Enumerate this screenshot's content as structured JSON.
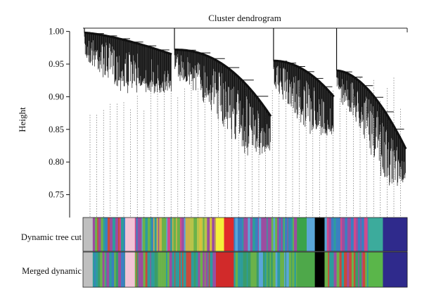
{
  "chart_data": {
    "type": "dendrogram",
    "title": "Cluster dendrogram",
    "xlabel": "",
    "ylabel": "Height",
    "ylim": [
      0.715,
      1.005
    ],
    "y_ticks": [
      "1.00",
      "0.95",
      "0.90",
      "0.85",
      "0.80",
      "0.75"
    ],
    "clusters": [
      {
        "n_leaves": 200,
        "merge_height": 0.998,
        "floor": 0.905,
        "steep": 1.4
      },
      {
        "n_leaves": 220,
        "merge_height": 0.972,
        "floor": 0.81,
        "steep": 2.2
      },
      {
        "n_leaves": 140,
        "merge_height": 0.955,
        "floor": 0.84,
        "steep": 2.0
      },
      {
        "n_leaves": 160,
        "merge_height": 0.94,
        "floor": 0.76,
        "steep": 1.8
      }
    ],
    "root_height": 1.0,
    "color_bands": [
      {
        "name": "Dynamic tree cut",
        "segments": [
          {
            "from": 0.0,
            "to": 0.03,
            "color": "#bfbfbf"
          },
          {
            "from": 0.03,
            "to": 0.13,
            "color": "mixed",
            "palette": [
              "#3a7fc1",
              "#9b4da0",
              "#6bb24a",
              "#d14a8b",
              "#2d9c9c",
              "#c94a3a"
            ]
          },
          {
            "from": 0.13,
            "to": 0.16,
            "color": "#f2c4d6"
          },
          {
            "from": 0.16,
            "to": 0.33,
            "color": "mixed",
            "palette": [
              "#3a7fc1",
              "#9b4da0",
              "#6bb24a",
              "#5aa6d8",
              "#c9b24a",
              "#2d9c9c",
              "#d14a8b"
            ]
          },
          {
            "from": 0.33,
            "to": 0.41,
            "color": "mixed",
            "palette": [
              "#6bb24a",
              "#9b4da0",
              "#b8c34a",
              "#d8c23a"
            ]
          },
          {
            "from": 0.41,
            "to": 0.435,
            "color": "#f5f03a"
          },
          {
            "from": 0.435,
            "to": 0.465,
            "color": "#e12a2a"
          },
          {
            "from": 0.465,
            "to": 0.66,
            "color": "mixed",
            "palette": [
              "#3a7fc1",
              "#5aa6d8",
              "#2d9c9c",
              "#6bb24a",
              "#9b4da0"
            ]
          },
          {
            "from": 0.66,
            "to": 0.69,
            "color": "#3aa34a"
          },
          {
            "from": 0.69,
            "to": 0.715,
            "color": "#5aa6d8"
          },
          {
            "from": 0.715,
            "to": 0.745,
            "color": "#000000"
          },
          {
            "from": 0.745,
            "to": 0.88,
            "color": "mixed",
            "palette": [
              "#3a7fc1",
              "#5aa6d8",
              "#2d9c9c",
              "#d14a8b",
              "#9b4da0"
            ]
          },
          {
            "from": 0.88,
            "to": 0.925,
            "color": "#3cab9c"
          },
          {
            "from": 0.925,
            "to": 1.0,
            "color": "#2f2a8c"
          }
        ]
      },
      {
        "name": "Merged dynamic",
        "segments": [
          {
            "from": 0.0,
            "to": 0.03,
            "color": "#bfbfbf"
          },
          {
            "from": 0.03,
            "to": 0.13,
            "color": "mixed",
            "palette": [
              "#3a9c6a",
              "#6bb24a",
              "#2d9c9c",
              "#9b4da0",
              "#3a7fc1"
            ]
          },
          {
            "from": 0.13,
            "to": 0.16,
            "color": "#f2c4d6"
          },
          {
            "from": 0.16,
            "to": 0.41,
            "color": "mixed",
            "palette": [
              "#3a9c6a",
              "#6bb24a",
              "#2d9c9c",
              "#9b4da0",
              "#c94a3a"
            ]
          },
          {
            "from": 0.41,
            "to": 0.465,
            "color": "#d12a2a"
          },
          {
            "from": 0.465,
            "to": 0.66,
            "color": "mixed",
            "palette": [
              "#3a9c6a",
              "#6bb24a",
              "#2d9c9c",
              "#5aa6d8"
            ]
          },
          {
            "from": 0.66,
            "to": 0.715,
            "color": "#4ea84a"
          },
          {
            "from": 0.715,
            "to": 0.745,
            "color": "#000000"
          },
          {
            "from": 0.745,
            "to": 0.88,
            "color": "mixed",
            "palette": [
              "#3a9c6a",
              "#6bb24a",
              "#2d9c9c",
              "#9b4da0",
              "#c94a3a"
            ]
          },
          {
            "from": 0.88,
            "to": 0.925,
            "color": "#5ab64a"
          },
          {
            "from": 0.925,
            "to": 1.0,
            "color": "#2f2a8c"
          }
        ]
      }
    ]
  }
}
